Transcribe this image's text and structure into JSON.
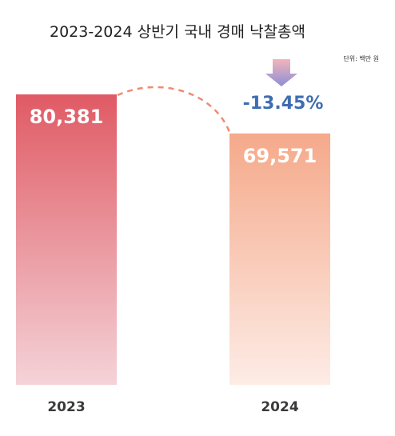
{
  "chart_data": {
    "type": "bar",
    "title": "2023-2024 상반기 국내 경매 낙찰총액",
    "unit": "단위: 백만 원",
    "categories": [
      "2023",
      "2024"
    ],
    "values": [
      80381,
      69571
    ],
    "value_labels": [
      "80,381",
      "69,571"
    ],
    "change_label": "-13.45%",
    "colors": {
      "bar_2023_top": "#e05a64",
      "bar_2023_bottom": "#f4d3d8",
      "bar_2024_top": "#f5a98a",
      "bar_2024_bottom": "#fdece6",
      "connector": "#f08a72",
      "arrow_top": "#f3b4bb",
      "arrow_bottom": "#8c8fd6",
      "change_text": "#3f6db1"
    }
  }
}
